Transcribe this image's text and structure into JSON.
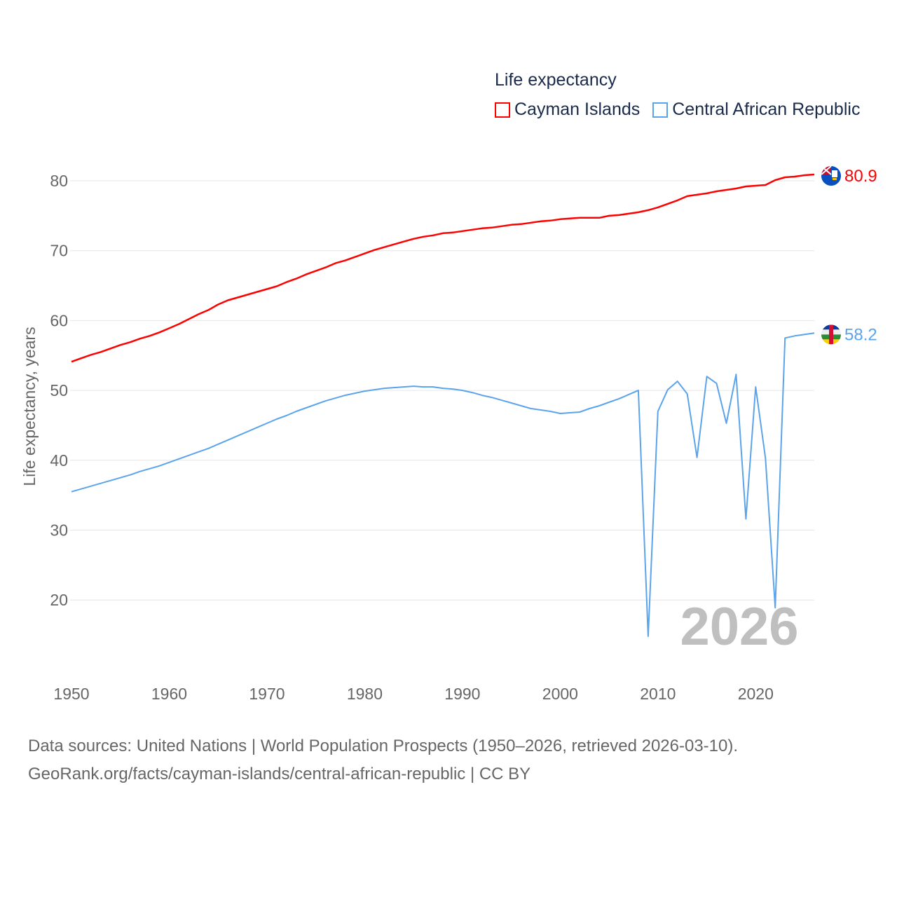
{
  "legend": {
    "title": "Life expectancy",
    "items": [
      {
        "label": "Cayman Islands",
        "color": "#ff0000"
      },
      {
        "label": "Central African Republic",
        "color": "#5ba4ec"
      }
    ]
  },
  "footer": {
    "line1": "Data sources: United Nations | World Population Prospects (1950–2026, retrieved 2026-03-10).",
    "line2": "GeoRank.org/facts/cayman-islands/central-african-republic | CC BY"
  },
  "chart_data": {
    "type": "line",
    "title": "Life expectancy",
    "xlabel": "",
    "ylabel": "Life expectancy, years",
    "xlim": [
      1950,
      2026
    ],
    "ylim": [
      10,
      85
    ],
    "x_ticks": [
      1950,
      1960,
      1970,
      1980,
      1990,
      2000,
      2010,
      2020
    ],
    "y_ticks": [
      20,
      30,
      40,
      50,
      60,
      70,
      80
    ],
    "grid": true,
    "legend_position": "top-right",
    "year_watermark": "2026",
    "x_start": 1950,
    "series": [
      {
        "name": "Cayman Islands",
        "color": "#ff0000",
        "end_label": "80.9",
        "flag": "cayman-islands",
        "values": [
          54.1,
          54.6,
          55.1,
          55.5,
          56.0,
          56.5,
          56.9,
          57.4,
          57.8,
          58.3,
          58.9,
          59.5,
          60.2,
          60.9,
          61.5,
          62.3,
          62.9,
          63.3,
          63.7,
          64.1,
          64.5,
          64.9,
          65.5,
          66.0,
          66.6,
          67.1,
          67.6,
          68.2,
          68.6,
          69.1,
          69.6,
          70.1,
          70.5,
          70.9,
          71.3,
          71.7,
          72.0,
          72.2,
          72.5,
          72.6,
          72.8,
          73.0,
          73.2,
          73.3,
          73.5,
          73.7,
          73.8,
          74.0,
          74.2,
          74.3,
          74.5,
          74.6,
          74.7,
          74.7,
          74.7,
          75.0,
          75.1,
          75.3,
          75.5,
          75.8,
          76.2,
          76.7,
          77.2,
          77.8,
          78.0,
          78.2,
          78.5,
          78.7,
          78.9,
          79.2,
          79.3,
          79.4,
          80.1,
          80.5,
          80.6,
          80.8,
          80.9
        ]
      },
      {
        "name": "Central African Republic",
        "color": "#5ba4ec",
        "end_label": "58.2",
        "flag": "central-african-republic",
        "values": [
          35.5,
          35.9,
          36.3,
          36.7,
          37.1,
          37.5,
          37.9,
          38.4,
          38.8,
          39.2,
          39.7,
          40.2,
          40.7,
          41.2,
          41.7,
          42.3,
          42.9,
          43.5,
          44.1,
          44.7,
          45.3,
          45.9,
          46.4,
          47.0,
          47.5,
          48.0,
          48.5,
          48.9,
          49.3,
          49.6,
          49.9,
          50.1,
          50.3,
          50.4,
          50.5,
          50.6,
          50.5,
          50.5,
          50.3,
          50.2,
          50.0,
          49.7,
          49.3,
          49.0,
          48.6,
          48.2,
          47.8,
          47.4,
          47.2,
          47.0,
          46.7,
          46.8,
          46.9,
          47.4,
          47.8,
          48.3,
          48.8,
          49.4,
          50.0,
          14.8,
          47.0,
          50.1,
          51.3,
          49.5,
          40.4,
          52.0,
          51.0,
          45.3,
          52.3,
          31.6,
          50.5,
          40.3,
          18.9,
          57.5,
          57.8,
          58.0,
          58.2
        ]
      }
    ]
  }
}
